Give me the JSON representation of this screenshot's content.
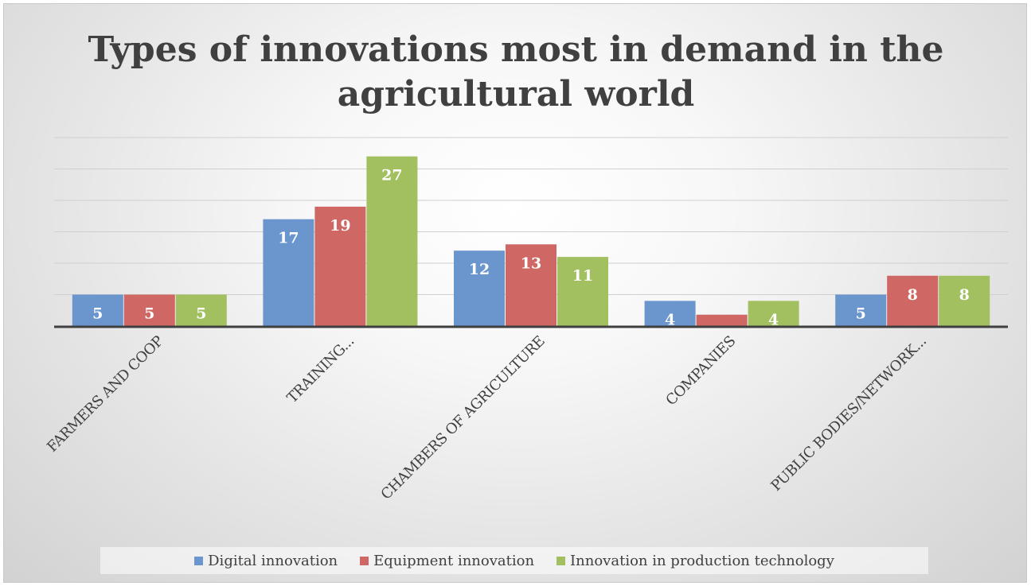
{
  "chart_data": {
    "type": "bar",
    "title": "Types of innovations most in demand in the agricultural world",
    "categories": [
      "FARMERS AND COOP",
      "TRAINING...",
      "CHAMBERS OF AGRICULTURE",
      "COMPANIES",
      "PUBLIC BODIES/NETWORK..."
    ],
    "series": [
      {
        "name": "Digital innovation",
        "color": "#6a96cd",
        "values": [
          5,
          17,
          12,
          4,
          5
        ],
        "labels": [
          "5",
          "17",
          "12",
          "4",
          "5"
        ]
      },
      {
        "name": "Equipment innovation",
        "color": "#cf6864",
        "values": [
          5,
          19,
          13,
          1.8,
          8
        ],
        "labels": [
          "5",
          "19",
          "13",
          "",
          "8"
        ]
      },
      {
        "name": "Innovation in production technology",
        "color": "#a3c061",
        "values": [
          5,
          27,
          11,
          4,
          8
        ],
        "labels": [
          "5",
          "27",
          "11",
          "4",
          "8"
        ]
      }
    ],
    "ylim": [
      0,
      27.5
    ],
    "gridlines": [
      5,
      10,
      15,
      20,
      25,
      30
    ],
    "grid": true,
    "legend": "bottom",
    "xlabel": "",
    "ylabel": ""
  }
}
